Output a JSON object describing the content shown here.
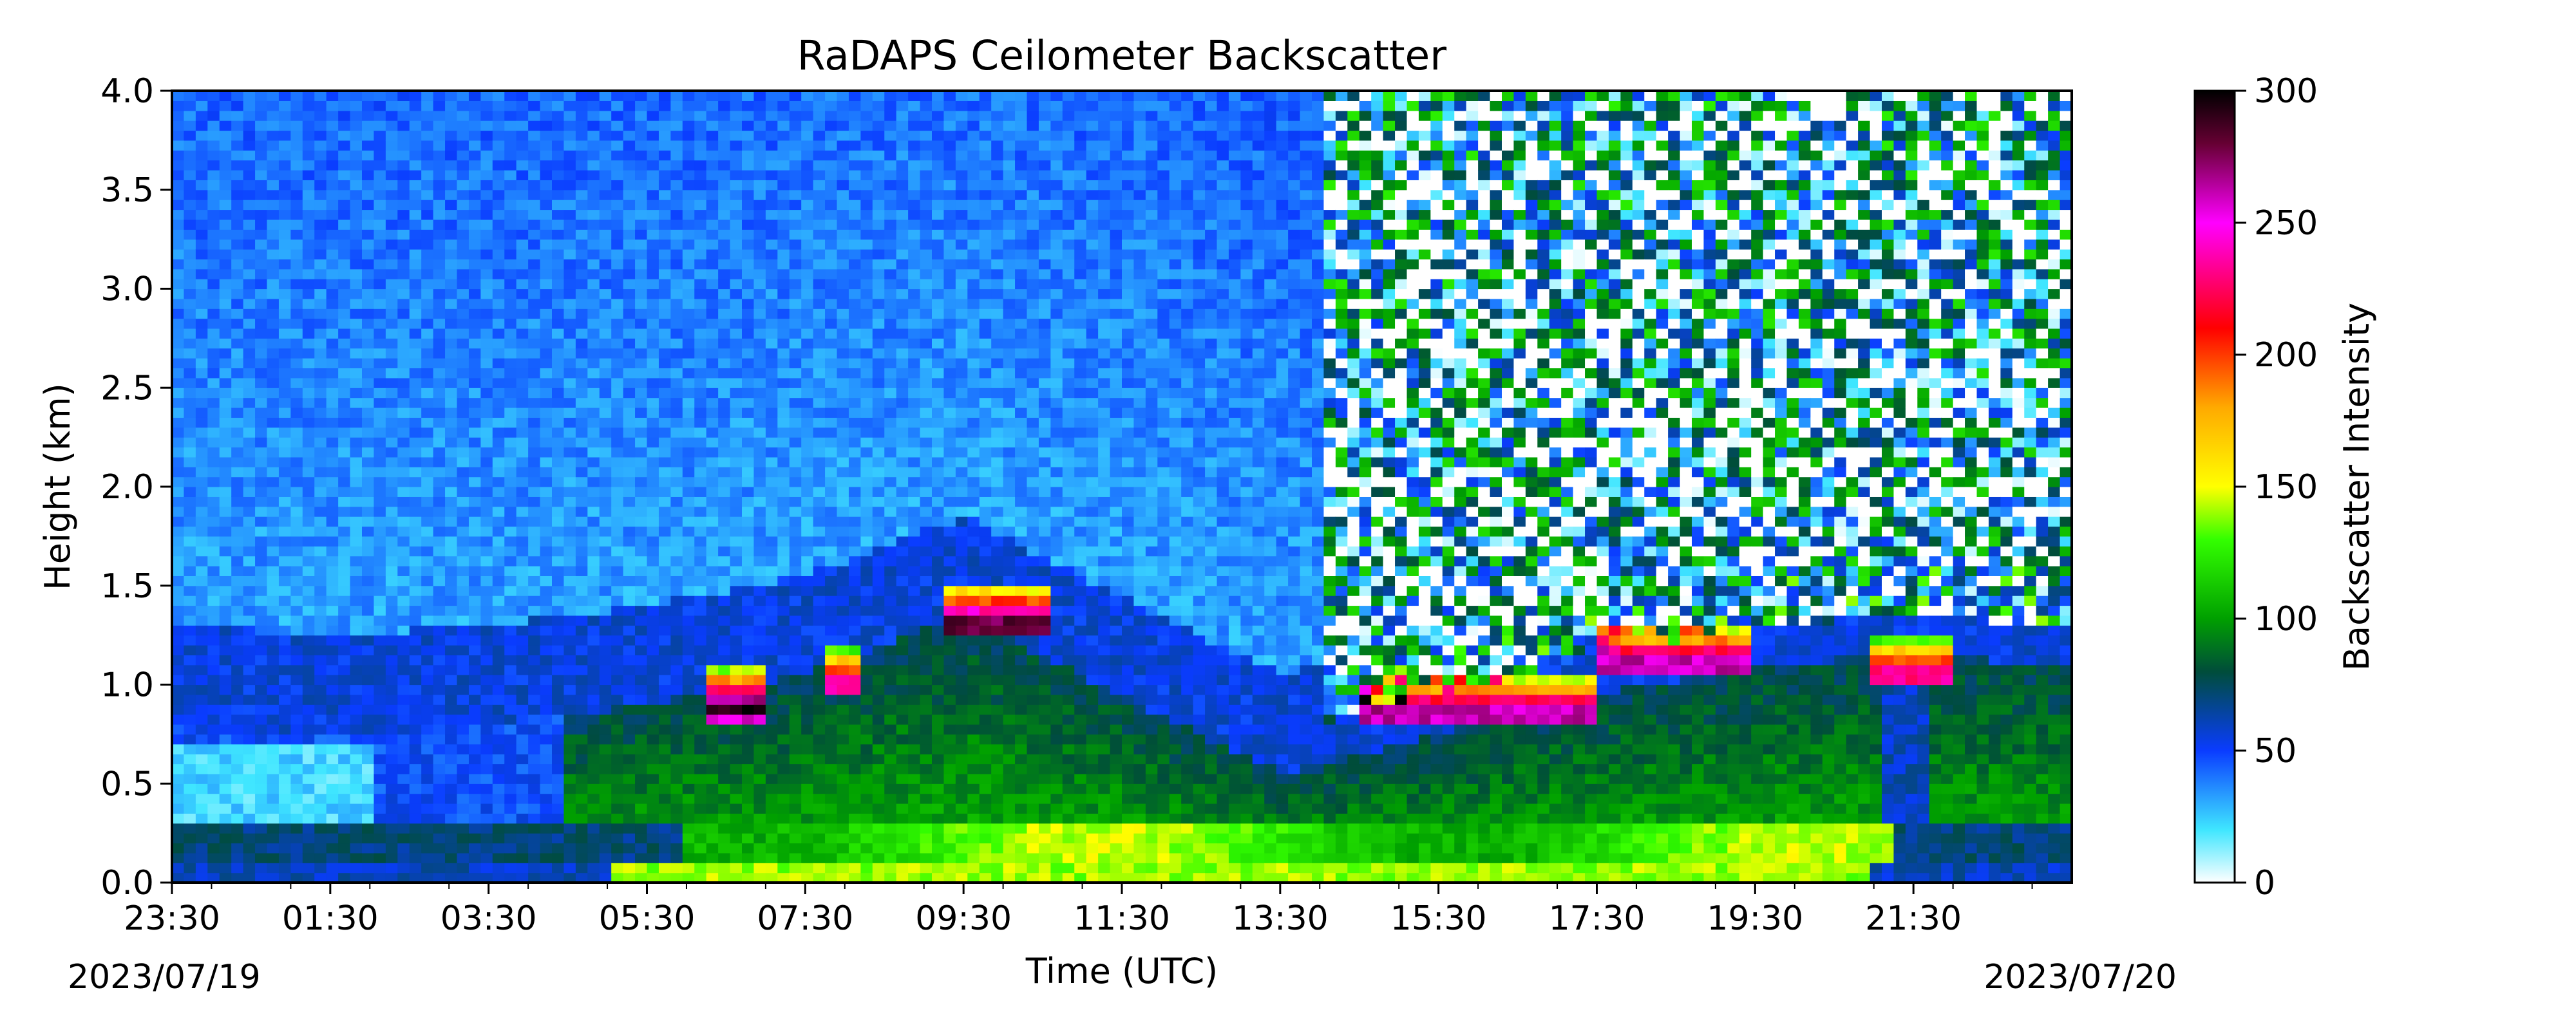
{
  "chart_data": {
    "type": "heatmap",
    "title": "RaDAPS Ceilometer Backscatter",
    "xlabel": "Time (UTC)",
    "ylabel": "Height (km)",
    "x_tick_labels": [
      "23:30",
      "01:30",
      "03:30",
      "05:30",
      "07:30",
      "09:30",
      "11:30",
      "13:30",
      "15:30",
      "17:30",
      "19:30",
      "21:30"
    ],
    "x_hours": [
      -0.5,
      1.5,
      3.5,
      5.5,
      7.5,
      9.5,
      11.5,
      13.5,
      15.5,
      17.5,
      19.5,
      21.5
    ],
    "x_range_hours": [
      -0.5,
      23.5
    ],
    "date_labels": {
      "start": "2023/07/19",
      "end": "2023/07/20"
    },
    "y_ticks": [
      0.0,
      0.5,
      1.0,
      1.5,
      2.0,
      2.5,
      3.0,
      3.5,
      4.0
    ],
    "y_tick_labels": [
      "0.0",
      "0.5",
      "1.0",
      "1.5",
      "2.0",
      "2.5",
      "3.0",
      "3.5",
      "4.0"
    ],
    "ylim": [
      0.0,
      4.0
    ],
    "colorbar": {
      "label": "Backscatter Intensity",
      "range": [
        0,
        300
      ],
      "ticks": [
        0,
        50,
        100,
        150,
        200,
        250,
        300
      ],
      "tick_labels": [
        "0",
        "50",
        "100",
        "150",
        "200",
        "250",
        "300"
      ],
      "colormap": [
        {
          "value": 0,
          "color": "#ffffff"
        },
        {
          "value": 20,
          "color": "#3fe6ff"
        },
        {
          "value": 50,
          "color": "#0a3cff"
        },
        {
          "value": 80,
          "color": "#004d3a"
        },
        {
          "value": 100,
          "color": "#00a000"
        },
        {
          "value": 130,
          "color": "#33ff00"
        },
        {
          "value": 150,
          "color": "#ffff00"
        },
        {
          "value": 180,
          "color": "#ffaa00"
        },
        {
          "value": 210,
          "color": "#ff0000"
        },
        {
          "value": 250,
          "color": "#ff00ff"
        },
        {
          "value": 280,
          "color": "#660033"
        },
        {
          "value": 300,
          "color": "#000000"
        }
      ]
    },
    "features": {
      "aerosol_layer_top_km": [
        {
          "hour": -0.5,
          "value": 0.8
        },
        {
          "hour": 1.5,
          "value": 0.75
        },
        {
          "hour": 3.5,
          "value": 0.8
        },
        {
          "hour": 5.5,
          "value": 0.9
        },
        {
          "hour": 7.5,
          "value": 1.05
        },
        {
          "hour": 9.5,
          "value": 1.35
        },
        {
          "hour": 11.5,
          "value": 0.95
        },
        {
          "hour": 13.5,
          "value": 0.55
        },
        {
          "hour": 15.5,
          "value": 0.75
        },
        {
          "hour": 17.5,
          "value": 0.95
        },
        {
          "hour": 19.5,
          "value": 1.1
        },
        {
          "hour": 21.5,
          "value": 1.15
        },
        {
          "hour": 23.5,
          "value": 1.1
        }
      ],
      "cloud_base_segments": [
        {
          "start_hour": 6.2,
          "end_hour": 7.0,
          "base_km": 0.88,
          "peak_backscatter": 300
        },
        {
          "start_hour": 7.8,
          "end_hour": 8.2,
          "base_km": 1.0,
          "peak_backscatter": 250
        },
        {
          "start_hour": 9.2,
          "end_hour": 10.6,
          "base_km": 1.3,
          "peak_backscatter": 300
        },
        {
          "start_hour": 14.5,
          "end_hour": 17.5,
          "base_km": 0.85,
          "peak_backscatter": 280
        },
        {
          "start_hour": 17.5,
          "end_hour": 19.5,
          "base_km": 1.1,
          "peak_backscatter": 280
        },
        {
          "start_hour": 21.0,
          "end_hour": 22.0,
          "base_km": 1.05,
          "peak_backscatter": 250
        }
      ],
      "surface_layer_peak_backscatter": 150,
      "noise_region_start_hour": 14.0
    }
  }
}
